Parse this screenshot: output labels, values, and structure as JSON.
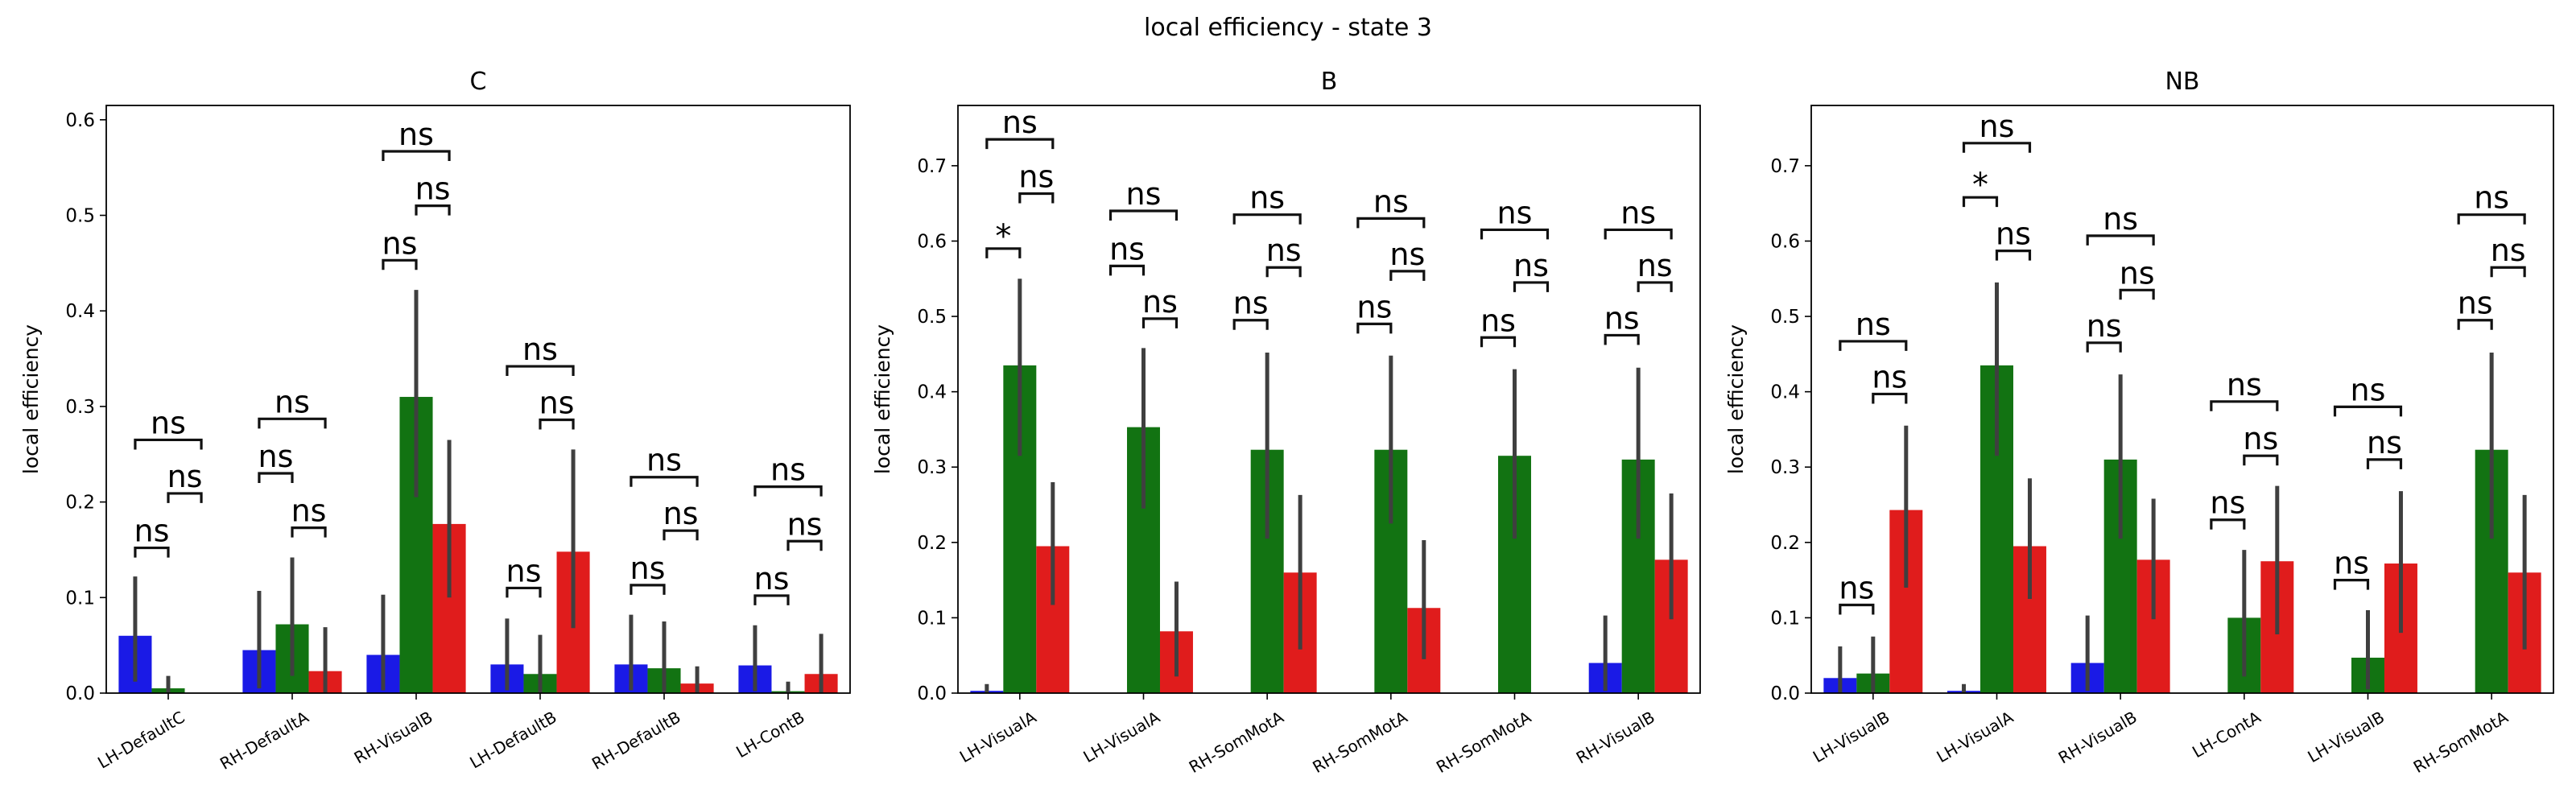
{
  "figure_title": "local efficiency - state 3",
  "colors": {
    "s1": "#1a1ae6",
    "s2": "#127312",
    "s3": "#e01c1c",
    "err": "#3f3f3f"
  },
  "chart_data": [
    {
      "type": "bar",
      "title": "C",
      "ylabel": "local efficiency",
      "ylim": [
        0,
        0.615
      ],
      "yticks": [
        0.0,
        0.1,
        0.2,
        0.3,
        0.4,
        0.5,
        0.6
      ],
      "grid": false,
      "categories": [
        "LH-DefaultC",
        "RH-DefaultA",
        "RH-VisualB",
        "LH-DefaultB",
        "RH-DefaultB",
        "LH-ContB"
      ],
      "series": [
        {
          "values": [
            0.06,
            0.045,
            0.04,
            0.03,
            0.03,
            0.029
          ],
          "err_low": [
            0.012,
            0.005,
            0.003,
            0.003,
            0.003,
            0.002
          ],
          "err_high": [
            0.122,
            0.107,
            0.103,
            0.078,
            0.082,
            0.071
          ]
        },
        {
          "values": [
            0.005,
            0.072,
            0.31,
            0.02,
            0.026,
            0.002
          ],
          "err_low": [
            0.0,
            0.018,
            0.205,
            0.0,
            0.0,
            0.0
          ],
          "err_high": [
            0.018,
            0.142,
            0.422,
            0.061,
            0.075,
            0.012
          ]
        },
        {
          "values": [
            0.0,
            0.023,
            0.177,
            0.148,
            0.01,
            0.02
          ],
          "err_low": [
            0.0,
            0.0,
            0.1,
            0.068,
            0.0,
            0.0
          ],
          "err_high": [
            0.0,
            0.069,
            0.265,
            0.255,
            0.028,
            0.062
          ]
        }
      ],
      "annotations": [
        {
          "cat": 0,
          "from": 0,
          "to": 1,
          "y": 0.152,
          "label": "ns"
        },
        {
          "cat": 0,
          "from": 1,
          "to": 2,
          "y": 0.209,
          "label": "ns"
        },
        {
          "cat": 0,
          "from": 0,
          "to": 2,
          "y": 0.265,
          "label": "ns"
        },
        {
          "cat": 1,
          "from": 0,
          "to": 1,
          "y": 0.23,
          "label": "ns"
        },
        {
          "cat": 1,
          "from": 1,
          "to": 2,
          "y": 0.173,
          "label": "ns"
        },
        {
          "cat": 1,
          "from": 0,
          "to": 2,
          "y": 0.287,
          "label": "ns"
        },
        {
          "cat": 2,
          "from": 0,
          "to": 1,
          "y": 0.453,
          "label": "ns"
        },
        {
          "cat": 2,
          "from": 1,
          "to": 2,
          "y": 0.51,
          "label": "ns"
        },
        {
          "cat": 2,
          "from": 0,
          "to": 2,
          "y": 0.567,
          "label": "ns"
        },
        {
          "cat": 3,
          "from": 0,
          "to": 1,
          "y": 0.11,
          "label": "ns"
        },
        {
          "cat": 3,
          "from": 1,
          "to": 2,
          "y": 0.286,
          "label": "ns"
        },
        {
          "cat": 3,
          "from": 0,
          "to": 2,
          "y": 0.342,
          "label": "ns"
        },
        {
          "cat": 4,
          "from": 0,
          "to": 1,
          "y": 0.113,
          "label": "ns"
        },
        {
          "cat": 4,
          "from": 1,
          "to": 2,
          "y": 0.17,
          "label": "ns"
        },
        {
          "cat": 4,
          "from": 0,
          "to": 2,
          "y": 0.226,
          "label": "ns"
        },
        {
          "cat": 5,
          "from": 0,
          "to": 1,
          "y": 0.102,
          "label": "ns"
        },
        {
          "cat": 5,
          "from": 1,
          "to": 2,
          "y": 0.159,
          "label": "ns"
        },
        {
          "cat": 5,
          "from": 0,
          "to": 2,
          "y": 0.216,
          "label": "ns"
        }
      ]
    },
    {
      "type": "bar",
      "title": "B",
      "ylabel": "local efficiency",
      "ylim": [
        0,
        0.78
      ],
      "yticks": [
        0.0,
        0.1,
        0.2,
        0.3,
        0.4,
        0.5,
        0.6,
        0.7
      ],
      "grid": false,
      "categories": [
        "LH-VisualA",
        "LH-VisualA",
        "RH-SomMotA",
        "RH-SomMotA",
        "RH-SomMotA",
        "RH-VisualB"
      ],
      "series": [
        {
          "values": [
            0.003,
            0.0,
            0.0,
            0.0,
            0.0,
            0.04
          ],
          "err_low": [
            0.0,
            0.0,
            0.0,
            0.0,
            0.0,
            0.003
          ],
          "err_high": [
            0.012,
            0.0,
            0.0,
            0.0,
            0.0,
            0.103
          ]
        },
        {
          "values": [
            0.435,
            0.353,
            0.323,
            0.323,
            0.315,
            0.31
          ],
          "err_low": [
            0.315,
            0.245,
            0.205,
            0.225,
            0.205,
            0.205
          ],
          "err_high": [
            0.55,
            0.458,
            0.452,
            0.448,
            0.43,
            0.432
          ]
        },
        {
          "values": [
            0.195,
            0.082,
            0.16,
            0.113,
            0.0,
            0.177
          ],
          "err_low": [
            0.117,
            0.022,
            0.058,
            0.045,
            0.0,
            0.098
          ],
          "err_high": [
            0.28,
            0.148,
            0.263,
            0.203,
            0.0,
            0.265
          ]
        }
      ],
      "annotations": [
        {
          "cat": 0,
          "from": 0,
          "to": 1,
          "y": 0.59,
          "label": "*"
        },
        {
          "cat": 0,
          "from": 1,
          "to": 2,
          "y": 0.663,
          "label": "ns"
        },
        {
          "cat": 0,
          "from": 0,
          "to": 2,
          "y": 0.735,
          "label": "ns"
        },
        {
          "cat": 1,
          "from": 0,
          "to": 1,
          "y": 0.567,
          "label": "ns"
        },
        {
          "cat": 1,
          "from": 1,
          "to": 2,
          "y": 0.497,
          "label": "ns"
        },
        {
          "cat": 1,
          "from": 0,
          "to": 2,
          "y": 0.64,
          "label": "ns"
        },
        {
          "cat": 2,
          "from": 0,
          "to": 1,
          "y": 0.495,
          "label": "ns"
        },
        {
          "cat": 2,
          "from": 1,
          "to": 2,
          "y": 0.565,
          "label": "ns"
        },
        {
          "cat": 2,
          "from": 0,
          "to": 2,
          "y": 0.635,
          "label": "ns"
        },
        {
          "cat": 3,
          "from": 0,
          "to": 1,
          "y": 0.49,
          "label": "ns"
        },
        {
          "cat": 3,
          "from": 1,
          "to": 2,
          "y": 0.56,
          "label": "ns"
        },
        {
          "cat": 3,
          "from": 0,
          "to": 2,
          "y": 0.63,
          "label": "ns"
        },
        {
          "cat": 4,
          "from": 0,
          "to": 1,
          "y": 0.472,
          "label": "ns"
        },
        {
          "cat": 4,
          "from": 1,
          "to": 2,
          "y": 0.545,
          "label": "ns"
        },
        {
          "cat": 4,
          "from": 0,
          "to": 2,
          "y": 0.615,
          "label": "ns"
        },
        {
          "cat": 5,
          "from": 0,
          "to": 1,
          "y": 0.475,
          "label": "ns"
        },
        {
          "cat": 5,
          "from": 1,
          "to": 2,
          "y": 0.545,
          "label": "ns"
        },
        {
          "cat": 5,
          "from": 0,
          "to": 2,
          "y": 0.615,
          "label": "ns"
        }
      ]
    },
    {
      "type": "bar",
      "title": "NB",
      "ylabel": "local efficiency",
      "ylim": [
        0,
        0.78
      ],
      "yticks": [
        0.0,
        0.1,
        0.2,
        0.3,
        0.4,
        0.5,
        0.6,
        0.7
      ],
      "grid": false,
      "categories": [
        "LH-VisualB",
        "LH-VisualA",
        "RH-VisualB",
        "LH-ContA",
        "LH-VisualB",
        "RH-SomMotA"
      ],
      "series": [
        {
          "values": [
            0.02,
            0.003,
            0.04,
            0.0,
            0.0,
            0.0
          ],
          "err_low": [
            0.0,
            0.0,
            0.003,
            0.0,
            0.0,
            0.0
          ],
          "err_high": [
            0.062,
            0.012,
            0.103,
            0.0,
            0.0,
            0.0
          ]
        },
        {
          "values": [
            0.026,
            0.435,
            0.31,
            0.1,
            0.047,
            0.323
          ],
          "err_low": [
            0.0,
            0.315,
            0.205,
            0.022,
            0.005,
            0.205
          ],
          "err_high": [
            0.075,
            0.545,
            0.423,
            0.19,
            0.11,
            0.452
          ]
        },
        {
          "values": [
            0.243,
            0.195,
            0.177,
            0.175,
            0.172,
            0.16
          ],
          "err_low": [
            0.14,
            0.125,
            0.098,
            0.078,
            0.08,
            0.058
          ],
          "err_high": [
            0.355,
            0.285,
            0.258,
            0.275,
            0.268,
            0.263
          ]
        }
      ],
      "annotations": [
        {
          "cat": 0,
          "from": 0,
          "to": 1,
          "y": 0.117,
          "label": "ns"
        },
        {
          "cat": 0,
          "from": 1,
          "to": 2,
          "y": 0.397,
          "label": "ns"
        },
        {
          "cat": 0,
          "from": 0,
          "to": 2,
          "y": 0.467,
          "label": "ns"
        },
        {
          "cat": 1,
          "from": 0,
          "to": 1,
          "y": 0.658,
          "label": "*"
        },
        {
          "cat": 1,
          "from": 1,
          "to": 2,
          "y": 0.587,
          "label": "ns"
        },
        {
          "cat": 1,
          "from": 0,
          "to": 2,
          "y": 0.73,
          "label": "ns"
        },
        {
          "cat": 2,
          "from": 0,
          "to": 1,
          "y": 0.465,
          "label": "ns"
        },
        {
          "cat": 2,
          "from": 1,
          "to": 2,
          "y": 0.535,
          "label": "ns"
        },
        {
          "cat": 2,
          "from": 0,
          "to": 2,
          "y": 0.607,
          "label": "ns"
        },
        {
          "cat": 3,
          "from": 0,
          "to": 1,
          "y": 0.23,
          "label": "ns"
        },
        {
          "cat": 3,
          "from": 1,
          "to": 2,
          "y": 0.315,
          "label": "ns"
        },
        {
          "cat": 3,
          "from": 0,
          "to": 2,
          "y": 0.387,
          "label": "ns"
        },
        {
          "cat": 4,
          "from": 0,
          "to": 1,
          "y": 0.15,
          "label": "ns"
        },
        {
          "cat": 4,
          "from": 1,
          "to": 2,
          "y": 0.31,
          "label": "ns"
        },
        {
          "cat": 4,
          "from": 0,
          "to": 2,
          "y": 0.38,
          "label": "ns"
        },
        {
          "cat": 5,
          "from": 0,
          "to": 1,
          "y": 0.495,
          "label": "ns"
        },
        {
          "cat": 5,
          "from": 1,
          "to": 2,
          "y": 0.565,
          "label": "ns"
        },
        {
          "cat": 5,
          "from": 0,
          "to": 2,
          "y": 0.635,
          "label": "ns"
        }
      ]
    }
  ]
}
